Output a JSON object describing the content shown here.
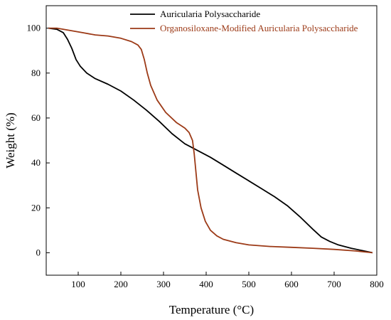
{
  "chart_data": {
    "type": "line",
    "xlabel": "Temperature (°C)",
    "ylabel": "Weight (%)",
    "xlim": [
      25,
      800
    ],
    "ylim": [
      -10,
      110
    ],
    "xticks": [
      100,
      200,
      300,
      400,
      500,
      600,
      700,
      800
    ],
    "yticks": [
      0,
      20,
      40,
      60,
      80,
      100
    ],
    "legend_position": "top-center",
    "series": [
      {
        "name": "Auricularia Polysaccharide",
        "color": "#000000",
        "x": [
          30,
          50,
          65,
          75,
          85,
          95,
          105,
          120,
          140,
          170,
          200,
          230,
          260,
          290,
          320,
          350,
          380,
          410,
          440,
          470,
          500,
          530,
          560,
          590,
          620,
          650,
          670,
          690,
          710,
          740,
          770,
          790
        ],
        "y": [
          100,
          99.5,
          98,
          95,
          91,
          86,
          83,
          80,
          77.5,
          75,
          72,
          68,
          63.5,
          58.5,
          53,
          48.5,
          45.5,
          42.5,
          39,
          35.5,
          32,
          28.5,
          25,
          21,
          16,
          10.5,
          7,
          5,
          3.5,
          2,
          0.8,
          0
        ]
      },
      {
        "name": "Organosiloxane-Modified Auricularia Polysaccharide",
        "color": "#9c3a17",
        "x": [
          30,
          50,
          80,
          110,
          140,
          170,
          200,
          225,
          240,
          248,
          255,
          262,
          270,
          285,
          305,
          330,
          350,
          360,
          368,
          372,
          376,
          380,
          388,
          398,
          410,
          425,
          440,
          470,
          500,
          550,
          600,
          650,
          700,
          750,
          790
        ],
        "y": [
          100,
          100,
          99,
          98,
          97,
          96.5,
          95.5,
          94,
          92.5,
          90.5,
          86,
          80,
          74.5,
          68,
          62.5,
          58,
          55.5,
          53.5,
          50,
          44,
          36,
          28,
          20,
          14,
          10,
          7.5,
          6,
          4.5,
          3.5,
          2.8,
          2.4,
          2,
          1.5,
          0.8,
          0
        ]
      }
    ]
  }
}
